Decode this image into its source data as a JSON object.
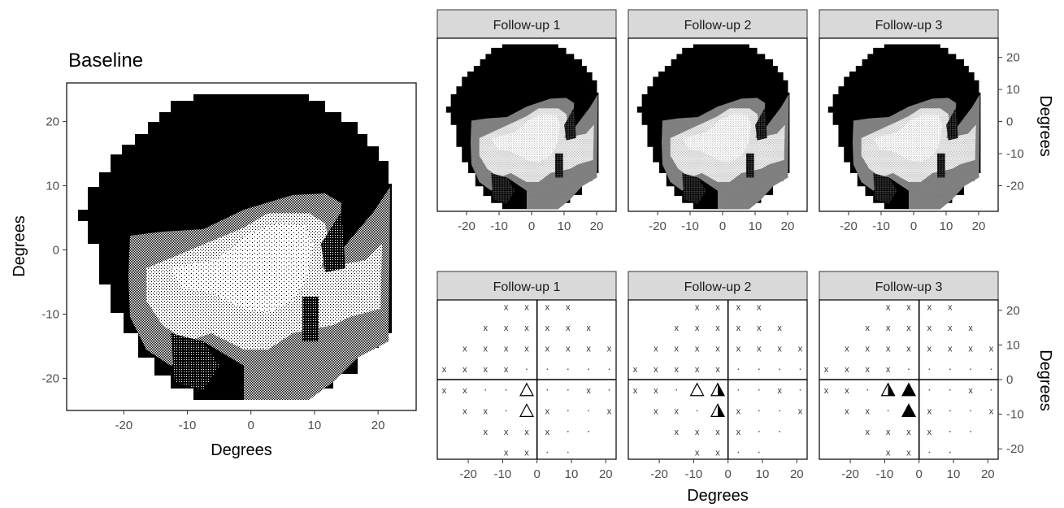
{
  "chart_data": [
    {
      "type": "heatmap",
      "panel": "baseline",
      "title": "Baseline",
      "xlabel": "Degrees",
      "ylabel": "Degrees",
      "xlim": [
        -29,
        26
      ],
      "ylim": [
        -25,
        26
      ],
      "xticks": [
        -20,
        -10,
        0,
        10,
        20
      ],
      "yticks": [
        -20,
        -10,
        0,
        10,
        20
      ],
      "grid": false
    },
    {
      "type": "heatmap",
      "panel": "followup-maps",
      "facets": [
        "Follow-up 1",
        "Follow-up 2",
        "Follow-up 3"
      ],
      "ylabel": "Degrees",
      "xlim": [
        -29,
        26
      ],
      "ylim": [
        -28,
        26
      ],
      "xticks": [
        -20,
        -10,
        0,
        10,
        20
      ],
      "yticks": [
        -20,
        -10,
        0,
        10,
        20
      ],
      "grid": false
    },
    {
      "type": "scatter",
      "panel": "followup-grids",
      "facets": [
        "Follow-up 1",
        "Follow-up 2",
        "Follow-up 3"
      ],
      "xlabel": "Degrees",
      "ylabel": "Degrees",
      "xlim": [
        -29,
        23
      ],
      "ylim": [
        -23,
        23
      ],
      "xticks": [
        -20,
        -10,
        0,
        10,
        20
      ],
      "yticks": [
        -20,
        -10,
        0,
        10,
        20
      ],
      "grid": false,
      "legend": "none",
      "symbols": {
        "deteriorated": "x",
        "stable": "·"
      },
      "rows": [
        {
          "y": 21,
          "x": [
            -9,
            -3,
            3,
            9
          ]
        },
        {
          "y": 15,
          "x": [
            -15,
            -9,
            -3,
            3,
            9,
            15
          ]
        },
        {
          "y": 9,
          "x": [
            -21,
            -15,
            -9,
            -3,
            3,
            9,
            15,
            21
          ]
        },
        {
          "y": 3,
          "x": [
            -27,
            -21,
            -15,
            -9,
            -3,
            3,
            9,
            15,
            21
          ]
        },
        {
          "y": -3,
          "x": [
            -27,
            -21,
            -15,
            -9,
            -3,
            3,
            9,
            15,
            21
          ]
        },
        {
          "y": -9,
          "x": [
            -21,
            -15,
            -9,
            -3,
            3,
            9,
            15,
            21
          ]
        },
        {
          "y": -15,
          "x": [
            -15,
            -9,
            -3,
            3,
            9,
            15
          ]
        },
        {
          "y": -21,
          "x": [
            -9,
            -3,
            3,
            9
          ]
        }
      ],
      "series": [
        {
          "name": "Follow-up 1",
          "grid": [
            "xxxx",
            "xxxxxx",
            "xxxxxxxx",
            "xxxx.....",
            "xx.....x.",
            "xx..x..x",
            "xxxx..",
            "xx.."
          ],
          "triangles": [
            {
              "x": -3,
              "y": -3,
              "fill": "open"
            },
            {
              "x": -3,
              "y": -9,
              "fill": "open"
            }
          ]
        },
        {
          "name": "Follow-up 2",
          "grid": [
            "xxxx",
            "xxxxxx",
            "xxxxxxxx",
            "xxxxx....",
            "xx.....x.",
            "xx..x..x",
            "xxxx..",
            "xx.."
          ],
          "triangles": [
            {
              "x": -9,
              "y": -3,
              "fill": "open"
            },
            {
              "x": -3,
              "y": -3,
              "fill": "half"
            },
            {
              "x": -3,
              "y": -9,
              "fill": "half"
            }
          ]
        },
        {
          "name": "Follow-up 3",
          "grid": [
            "xxxx",
            "xxxxxx",
            "xxxxxxxx",
            "xxxx.....",
            "xx.....x.",
            "xx..x..x",
            "xxxx..",
            "xx.."
          ],
          "triangles": [
            {
              "x": -9,
              "y": -3,
              "fill": "half"
            },
            {
              "x": -3,
              "y": -3,
              "fill": "full"
            },
            {
              "x": -3,
              "y": -9,
              "fill": "full"
            }
          ]
        }
      ]
    }
  ]
}
